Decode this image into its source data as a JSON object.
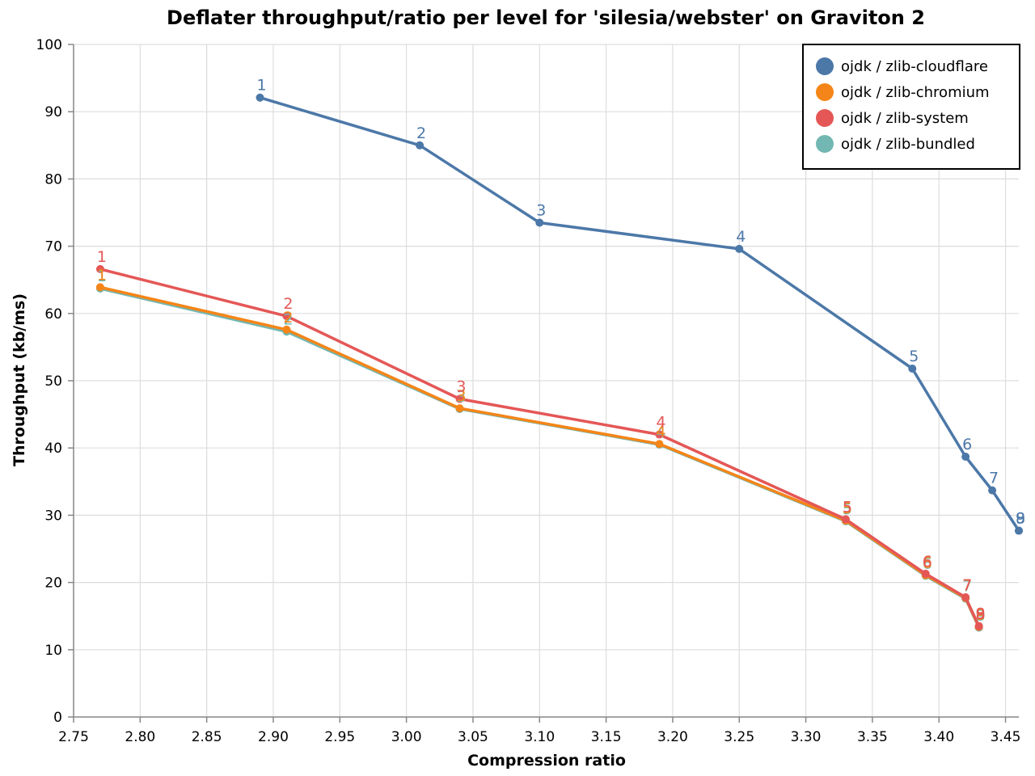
{
  "chart_data": {
    "type": "line",
    "title": "Deflater throughput/ratio per level for 'silesia/webster' on Graviton 2",
    "xlabel": "Compression ratio",
    "ylabel": "Throughput (kb/ms)",
    "xlim": [
      2.75,
      3.46
    ],
    "ylim": [
      0,
      100
    ],
    "xticks": [
      "2.75",
      "2.80",
      "2.85",
      "2.90",
      "2.95",
      "3.00",
      "3.05",
      "3.10",
      "3.15",
      "3.20",
      "3.25",
      "3.30",
      "3.35",
      "3.40",
      "3.45"
    ],
    "yticks": [
      "0",
      "10",
      "20",
      "30",
      "40",
      "50",
      "60",
      "70",
      "80",
      "90",
      "100"
    ],
    "grid": true,
    "legend_position": "top-right",
    "series": [
      {
        "name": "ojdk / zlib-cloudflare",
        "color": "#4c78a8",
        "points": [
          {
            "x": 2.89,
            "y": 92.1,
            "label": "1"
          },
          {
            "x": 3.01,
            "y": 85.0,
            "label": "2"
          },
          {
            "x": 3.1,
            "y": 73.5,
            "label": "3"
          },
          {
            "x": 3.25,
            "y": 69.6,
            "label": "4"
          },
          {
            "x": 3.38,
            "y": 51.8,
            "label": "5"
          },
          {
            "x": 3.42,
            "y": 38.7,
            "label": "6"
          },
          {
            "x": 3.44,
            "y": 33.7,
            "label": "7"
          },
          {
            "x": 3.46,
            "y": 27.7,
            "label": "8"
          },
          {
            "x": 3.46,
            "y": 27.7,
            "label": "9"
          }
        ]
      },
      {
        "name": "ojdk / zlib-chromium",
        "color": "#f58518",
        "points": [
          {
            "x": 2.77,
            "y": 63.9,
            "label": "1"
          },
          {
            "x": 2.91,
            "y": 57.6,
            "label": "2"
          },
          {
            "x": 3.04,
            "y": 45.9,
            "label": "3"
          },
          {
            "x": 3.19,
            "y": 40.6,
            "label": "4"
          },
          {
            "x": 3.33,
            "y": 29.2,
            "label": "5"
          },
          {
            "x": 3.39,
            "y": 21.1,
            "label": "6"
          },
          {
            "x": 3.42,
            "y": 17.7,
            "label": "7"
          },
          {
            "x": 3.43,
            "y": 13.4,
            "label": "8"
          },
          {
            "x": 3.43,
            "y": 13.4,
            "label": "9"
          }
        ]
      },
      {
        "name": "ojdk / zlib-system",
        "color": "#e45756",
        "points": [
          {
            "x": 2.77,
            "y": 66.6,
            "label": "1"
          },
          {
            "x": 2.91,
            "y": 59.6,
            "label": "2"
          },
          {
            "x": 3.04,
            "y": 47.3,
            "label": "3"
          },
          {
            "x": 3.19,
            "y": 42.0,
            "label": "4"
          },
          {
            "x": 3.33,
            "y": 29.4,
            "label": "5"
          },
          {
            "x": 3.39,
            "y": 21.3,
            "label": "6"
          },
          {
            "x": 3.42,
            "y": 17.8,
            "label": "7"
          },
          {
            "x": 3.43,
            "y": 13.5,
            "label": "8"
          },
          {
            "x": 3.43,
            "y": 13.5,
            "label": "9"
          }
        ]
      },
      {
        "name": "ojdk / zlib-bundled",
        "color": "#72b7b2",
        "points": [
          {
            "x": 2.77,
            "y": 63.7,
            "label": "1"
          },
          {
            "x": 2.91,
            "y": 57.3,
            "label": "2"
          },
          {
            "x": 3.04,
            "y": 45.8,
            "label": "3"
          },
          {
            "x": 3.19,
            "y": 40.5,
            "label": "4"
          },
          {
            "x": 3.33,
            "y": 29.1,
            "label": "5"
          },
          {
            "x": 3.39,
            "y": 21.0,
            "label": "6"
          },
          {
            "x": 3.42,
            "y": 17.6,
            "label": "7"
          },
          {
            "x": 3.43,
            "y": 13.3,
            "label": "8"
          },
          {
            "x": 3.43,
            "y": 13.3,
            "label": "9"
          }
        ]
      }
    ]
  }
}
